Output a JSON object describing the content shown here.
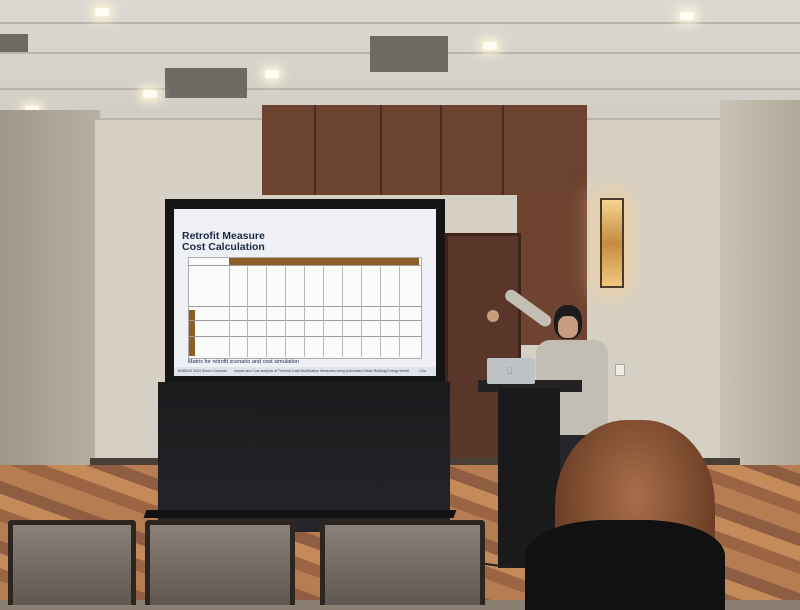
{
  "slide": {
    "title": "Retrofit Measure Cost Calculation",
    "bullet": "Matrix for retrofit scenario and cost simulation",
    "footer_left": "BSBE&S 2024 Senior Colorado",
    "footer_center": "Impact and Cost analysis of Thermal Load Modification Measures using Automated Urban Building Energy Modeling in Ithaca, NY",
    "page_number": "13/a"
  },
  "colors": {
    "slide_background": "#eef0f6",
    "slide_accent": "#8b5e27",
    "title_color": "#1d2a44"
  }
}
